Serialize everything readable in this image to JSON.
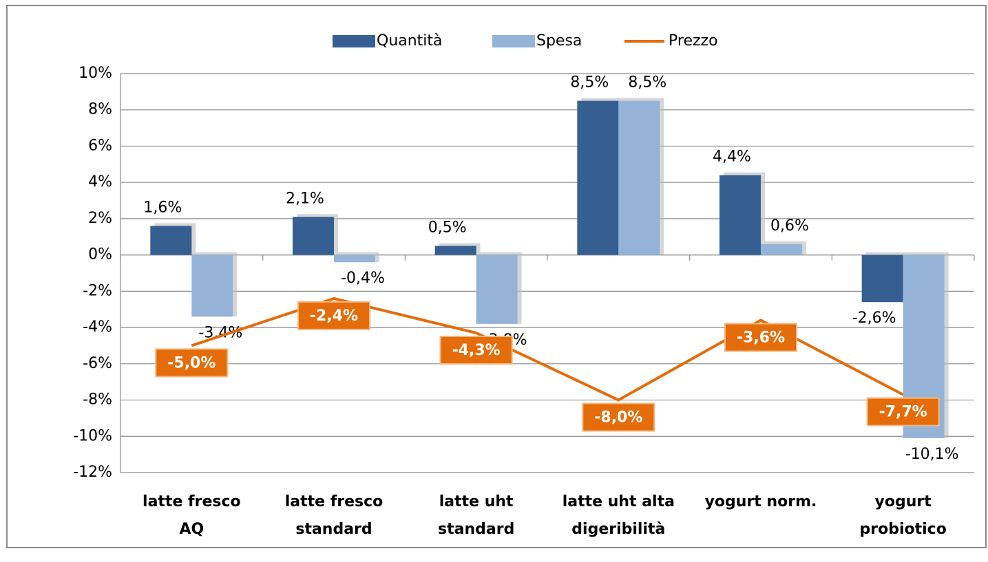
{
  "chart_data": {
    "type": "bar_line",
    "categories": [
      [
        "latte fresco",
        "AQ"
      ],
      [
        "latte fresco",
        "standard"
      ],
      [
        "latte uht",
        "standard"
      ],
      [
        "latte uht alta",
        "digeribilità"
      ],
      [
        "yogurt norm."
      ],
      [
        "yogurt",
        "probiotico"
      ]
    ],
    "series": [
      {
        "name": "Quantità",
        "type": "bar",
        "color": "#365f91",
        "values": [
          1.6,
          2.1,
          0.5,
          8.5,
          4.4,
          -2.6
        ],
        "value_labels": [
          "1,6%",
          "2,1%",
          "0,5%",
          "8,5%",
          "4,4%",
          "-2,6%"
        ]
      },
      {
        "name": "Spesa",
        "type": "bar",
        "color": "#95b3d7",
        "values": [
          -3.4,
          -0.4,
          -3.8,
          8.5,
          0.6,
          -10.1
        ],
        "value_labels": [
          "-3,4%",
          "-0,4%",
          "-3,8%",
          "8,5%",
          "0,6%",
          "-10,1%"
        ]
      },
      {
        "name": "Prezzo",
        "type": "line",
        "color": "#e46c0a",
        "values": [
          -5.0,
          -2.4,
          -4.3,
          -8.0,
          -3.6,
          -7.7
        ],
        "value_labels": [
          "-5,0%",
          "-2,4%",
          "-4,3%",
          "-8,0%",
          "-3,6%",
          "-7,7%"
        ]
      }
    ],
    "ylim": [
      -12,
      10
    ],
    "yticks": [
      {
        "value": -12,
        "label": "-12%"
      },
      {
        "value": -10,
        "label": "-10%"
      },
      {
        "value": -8,
        "label": "-8%"
      },
      {
        "value": -6,
        "label": "-6%"
      },
      {
        "value": -4,
        "label": "-4%"
      },
      {
        "value": -2,
        "label": "-2%"
      },
      {
        "value": 0,
        "label": "0%"
      },
      {
        "value": 2,
        "label": "2%"
      },
      {
        "value": 4,
        "label": "4%"
      },
      {
        "value": 6,
        "label": "6%"
      },
      {
        "value": 8,
        "label": "8%"
      },
      {
        "value": 10,
        "label": "10%"
      }
    ],
    "grid": true,
    "legend": "top"
  }
}
